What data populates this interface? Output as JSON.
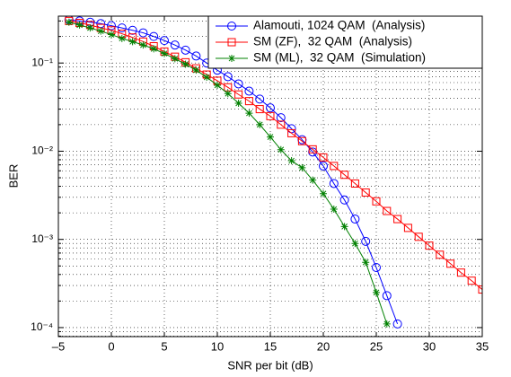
{
  "chart_data": {
    "type": "line",
    "x_label": "SNR per bit (dB)",
    "y_label": "BER",
    "log_y": true,
    "grid": true,
    "minor_grid": true,
    "legend": "upper right",
    "xlim": [
      -5,
      35
    ],
    "xticks": [
      {
        "value": -5,
        "label": "–5"
      },
      0,
      5,
      10,
      15,
      20,
      25,
      30,
      35
    ],
    "ylim": [
      7.9e-05,
      0.34
    ],
    "yticks": [
      {
        "value": 0.0001,
        "label": "10⁻⁴"
      },
      {
        "value": 0.001,
        "label": "10⁻³"
      },
      {
        "value": 0.01,
        "label": "10⁻²"
      },
      {
        "value": 0.1,
        "label": "10⁻¹"
      }
    ],
    "series": [
      {
        "name": "Alamouti, 1024 QAM  (Analysis)",
        "color": "#0000ff",
        "marker": "circle",
        "x": [
          -4,
          -3,
          -2,
          -1,
          0,
          1,
          2,
          3,
          4,
          5,
          6,
          7,
          8,
          9,
          10,
          11,
          12,
          13,
          14,
          15,
          16,
          17,
          18,
          19,
          20,
          21,
          22,
          23,
          24,
          25,
          26,
          27
        ],
        "values": [
          0.31,
          0.3,
          0.29,
          0.28,
          0.265,
          0.25,
          0.235,
          0.22,
          0.2,
          0.18,
          0.16,
          0.14,
          0.12,
          0.1,
          0.083,
          0.07,
          0.058,
          0.048,
          0.039,
          0.031,
          0.024,
          0.018,
          0.0135,
          0.0098,
          0.0068,
          0.0043,
          0.0028,
          0.0017,
          0.00095,
          0.00048,
          0.00023,
          0.00011
        ]
      },
      {
        "name": "SM (ZF),  32 QAM  (Analysis)",
        "color": "#ff0000",
        "marker": "square",
        "x": [
          -4,
          -3,
          -2,
          -1,
          0,
          1,
          2,
          3,
          4,
          5,
          6,
          7,
          8,
          9,
          10,
          11,
          12,
          13,
          14,
          15,
          16,
          17,
          18,
          19,
          20,
          21,
          22,
          23,
          24,
          25,
          26,
          27,
          28,
          29,
          30,
          31,
          32,
          33,
          34,
          35
        ],
        "values": [
          0.3,
          0.285,
          0.27,
          0.25,
          0.235,
          0.215,
          0.195,
          0.175,
          0.155,
          0.135,
          0.118,
          0.102,
          0.087,
          0.074,
          0.063,
          0.053,
          0.044,
          0.037,
          0.03,
          0.025,
          0.02,
          0.016,
          0.013,
          0.0105,
          0.0085,
          0.0068,
          0.0054,
          0.0043,
          0.0034,
          0.0027,
          0.0021,
          0.0017,
          0.00135,
          0.00107,
          0.00085,
          0.00067,
          0.00053,
          0.00042,
          0.00034,
          0.00027
        ]
      },
      {
        "name": "SM (ML),  32 QAM  (Simulation)",
        "color": "#008000",
        "marker": "asterisk",
        "x": [
          -4,
          -3,
          -2,
          -1,
          0,
          1,
          2,
          3,
          4,
          5,
          6,
          7,
          8,
          9,
          10,
          11,
          12,
          13,
          14,
          15,
          16,
          17,
          18,
          19,
          20,
          21,
          22,
          23,
          24,
          25,
          26
        ],
        "values": [
          0.29,
          0.27,
          0.25,
          0.23,
          0.21,
          0.19,
          0.175,
          0.16,
          0.145,
          0.128,
          0.112,
          0.097,
          0.083,
          0.069,
          0.056,
          0.045,
          0.035,
          0.027,
          0.02,
          0.0145,
          0.0104,
          0.0078,
          0.0065,
          0.0047,
          0.0033,
          0.0022,
          0.0014,
          0.0009,
          0.00055,
          0.00025,
          0.00011
        ]
      }
    ]
  }
}
